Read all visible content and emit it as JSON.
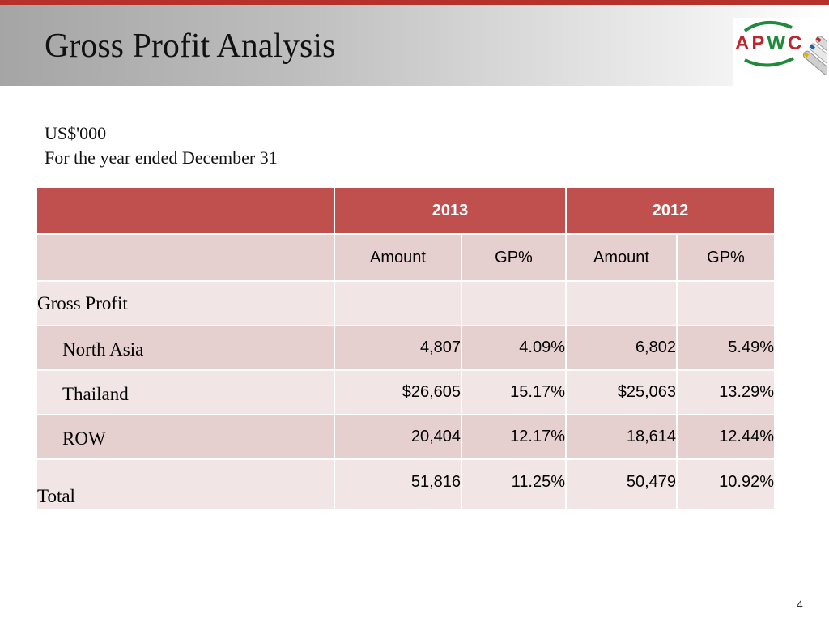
{
  "slide": {
    "title": "Gross Profit Analysis",
    "currency": "US$'000",
    "period": "For the year ended December 31",
    "page_number": "4"
  },
  "logo": {
    "text": "APWC"
  },
  "table": {
    "years": [
      "2013",
      "2012"
    ],
    "subheaders": [
      "Amount",
      "GP%",
      "Amount",
      "GP%"
    ],
    "section_label": "Gross Profit",
    "rows": [
      {
        "label": "North Asia",
        "amount_2013": "4,807",
        "gp_2013": "4.09%",
        "amount_2012": "6,802",
        "gp_2012": "5.49%"
      },
      {
        "label": "Thailand",
        "amount_2013": "$26,605",
        "gp_2013": "15.17%",
        "amount_2012": "$25,063",
        "gp_2012": "13.29%"
      },
      {
        "label": "ROW",
        "amount_2013": "20,404",
        "gp_2013": "12.17%",
        "amount_2012": "18,614",
        "gp_2012": "12.44%"
      }
    ],
    "total": {
      "label": "Total",
      "amount_2013": "51,816",
      "gp_2013": "11.25%",
      "amount_2012": "50,479",
      "gp_2012": "10.92%"
    }
  },
  "colors": {
    "header_fill": "#c0504d",
    "row_dark": "#e6cfcf",
    "row_light": "#f2e5e5",
    "top_rule": "#b7312c"
  }
}
